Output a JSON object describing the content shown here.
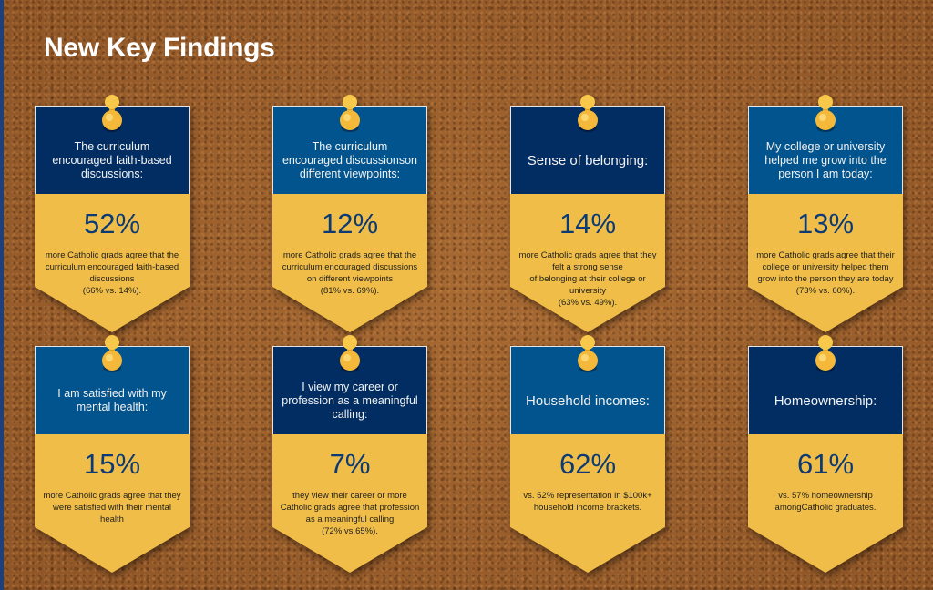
{
  "title": "New Key Findings",
  "colors": {
    "dark_blue": "#012d62",
    "medium_blue": "#01548d",
    "yellow": "#f0be48",
    "cork": "#9c612c"
  },
  "cards": [
    {
      "heading": "The curriculum encouraged faith-based discussions:",
      "stat": "52%",
      "description": "more Catholic grads agree that the curriculum encouraged faith-based discussions\n(66% vs. 14%).",
      "header_color": "dark_blue"
    },
    {
      "heading": "The curriculum encouraged discussionson different viewpoints:",
      "stat": "12%",
      "description": "more Catholic grads agree that the curriculum encouraged discussions on different viewpoints\n(81% vs. 69%).",
      "header_color": "medium_blue"
    },
    {
      "heading": "Sense of belonging:",
      "stat": "14%",
      "description": "more Catholic grads agree that they felt a strong sense\nof belonging at their college or university\n(63% vs. 49%).",
      "header_color": "dark_blue"
    },
    {
      "heading": "My college or university helped me grow into the person I am today:",
      "stat": "13%",
      "description": "more Catholic grads agree that their college or university helped them grow into the person they are today\n(73% vs. 60%).",
      "header_color": "medium_blue"
    },
    {
      "heading": "I am satisfied with my mental health:",
      "stat": "15%",
      "description": "more Catholic grads agree that they were satisfied with their mental health",
      "header_color": "medium_blue"
    },
    {
      "heading": "I view my career or profession as a meaningful calling:",
      "stat": "7%",
      "description": "they view their career or  more Catholic grads agree that profession as a meaningful calling\n(72% vs.65%).",
      "header_color": "dark_blue"
    },
    {
      "heading": "Household incomes:",
      "stat": "62%",
      "description": "vs. 52% representation in $100k+ household income brackets.",
      "header_color": "medium_blue"
    },
    {
      "heading": "Homeownership:",
      "stat": "61%",
      "description": "vs. 57% homeownership amongCatholic graduates.",
      "header_color": "dark_blue"
    }
  ]
}
